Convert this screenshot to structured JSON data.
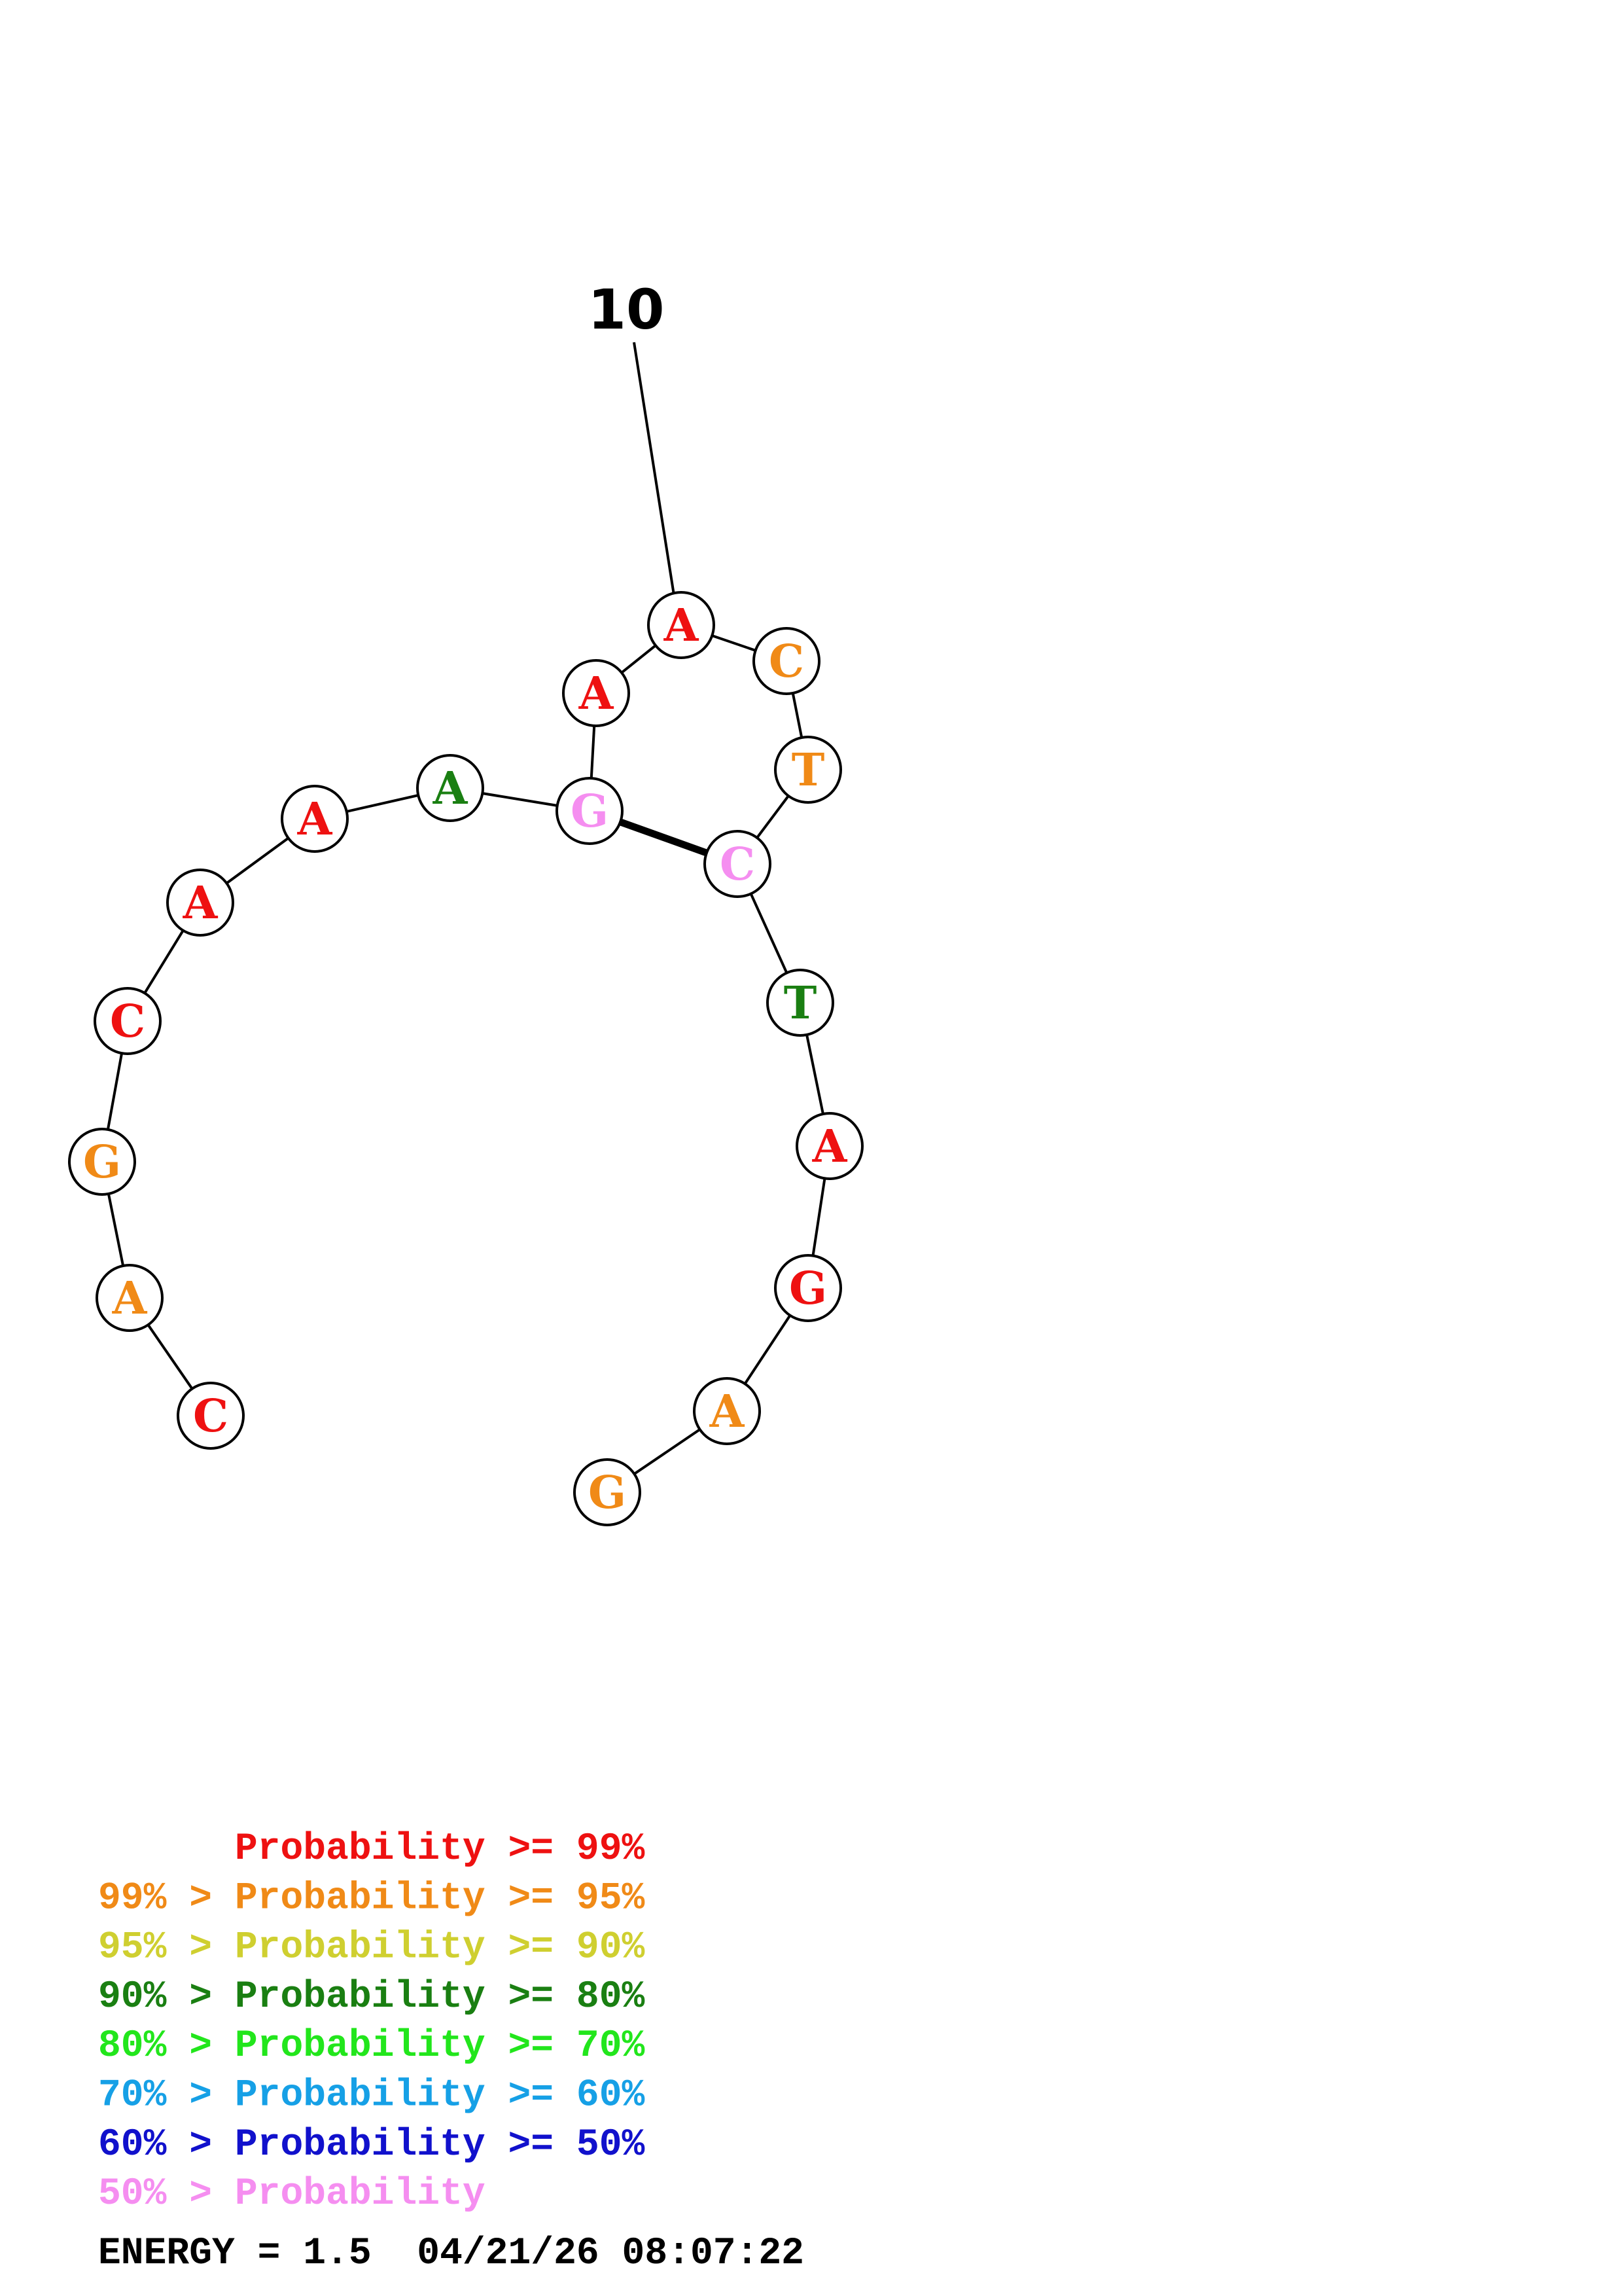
{
  "structure": {
    "tick_label": "10",
    "nucleotides": [
      {
        "letter": "C",
        "color": "#ee1111"
      },
      {
        "letter": "A",
        "color": "#f08a17"
      },
      {
        "letter": "G",
        "color": "#f08a17"
      },
      {
        "letter": "C",
        "color": "#ee1111"
      },
      {
        "letter": "A",
        "color": "#ee1111"
      },
      {
        "letter": "A",
        "color": "#ee1111"
      },
      {
        "letter": "A",
        "color": "#1a7f12"
      },
      {
        "letter": "G",
        "color": "#f58ef0"
      },
      {
        "letter": "A",
        "color": "#ee1111"
      },
      {
        "letter": "A",
        "color": "#ee1111"
      },
      {
        "letter": "C",
        "color": "#f08a17"
      },
      {
        "letter": "T",
        "color": "#f08a17"
      },
      {
        "letter": "C",
        "color": "#f58ef0"
      },
      {
        "letter": "T",
        "color": "#1a7f12"
      },
      {
        "letter": "A",
        "color": "#ee1111"
      },
      {
        "letter": "G",
        "color": "#ee1111"
      },
      {
        "letter": "A",
        "color": "#f08a17"
      },
      {
        "letter": "G",
        "color": "#f08a17"
      }
    ]
  },
  "legend": [
    {
      "text": "      Probability >= 99%",
      "color": "#ee1111"
    },
    {
      "text": "99% > Probability >= 95%",
      "color": "#f08a17"
    },
    {
      "text": "95% > Probability >= 90%",
      "color": "#cfcf30"
    },
    {
      "text": "90% > Probability >= 80%",
      "color": "#1a7f12"
    },
    {
      "text": "80% > Probability >= 70%",
      "color": "#22e61c"
    },
    {
      "text": "70% > Probability >= 60%",
      "color": "#16a0e6"
    },
    {
      "text": "60% > Probability >= 50%",
      "color": "#1111cc"
    },
    {
      "text": "50% > Probability",
      "color": "#f58ef0"
    }
  ],
  "energy_text": "ENERGY = 1.5  04/21/26 08:07:22",
  "colors": {
    "outline": "#000000",
    "background": "#ffffff"
  }
}
